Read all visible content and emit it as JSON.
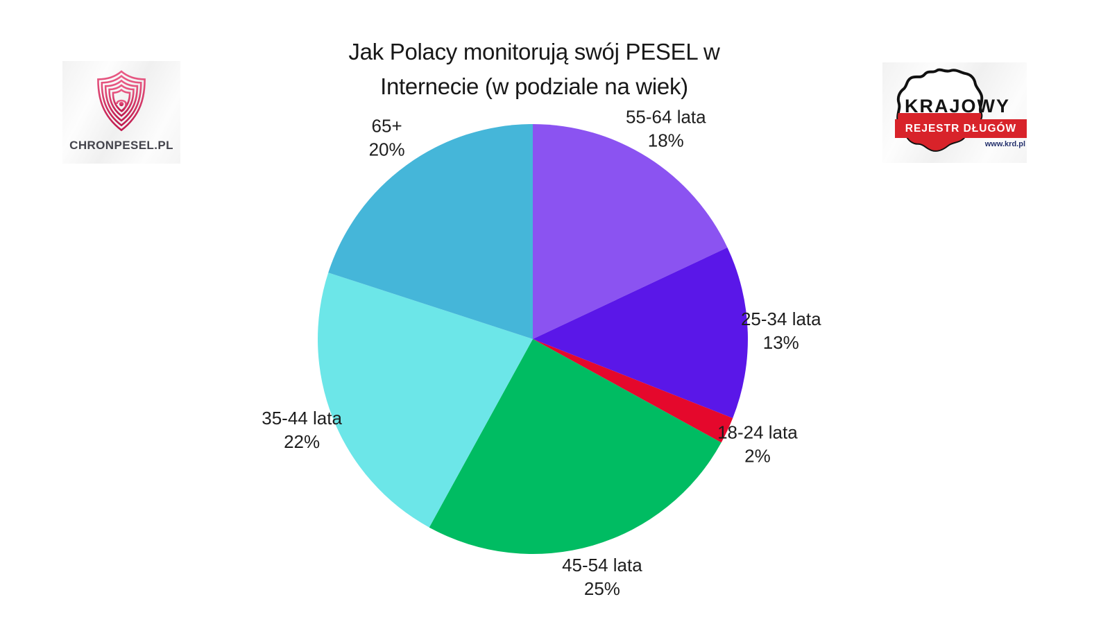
{
  "title": {
    "line1": "Jak Polacy monitorują swój PESEL w",
    "line2": "Internecie (w podziale na wiek)"
  },
  "logos": {
    "chronpesel": {
      "text": "CHRONPESEL.PL"
    },
    "krd": {
      "line1": "KRAJOWY",
      "line2": "REJESTR DŁUGÓW",
      "url": "www.krd.pl"
    }
  },
  "chart_data": {
    "type": "pie",
    "title": "Jak Polacy monitorują swój PESEL w Internecie (w podziale na wiek)",
    "start_angle_deg": 0,
    "direction": "clockwise",
    "label_format": "{label}\n{value}%",
    "slices": [
      {
        "label": "55-64 lata",
        "value": 18,
        "color": "#8b53f1"
      },
      {
        "label": "25-34 lata",
        "value": 13,
        "color": "#5a17e8"
      },
      {
        "label": "18-24 lata",
        "value": 2,
        "color": "#e5082c"
      },
      {
        "label": "45-54 lata",
        "value": 25,
        "color": "#00bc62"
      },
      {
        "label": "35-44 lata",
        "value": 22,
        "color": "#6ce6e8"
      },
      {
        "label": "65+",
        "value": 20,
        "color": "#45b6d9"
      }
    ]
  }
}
